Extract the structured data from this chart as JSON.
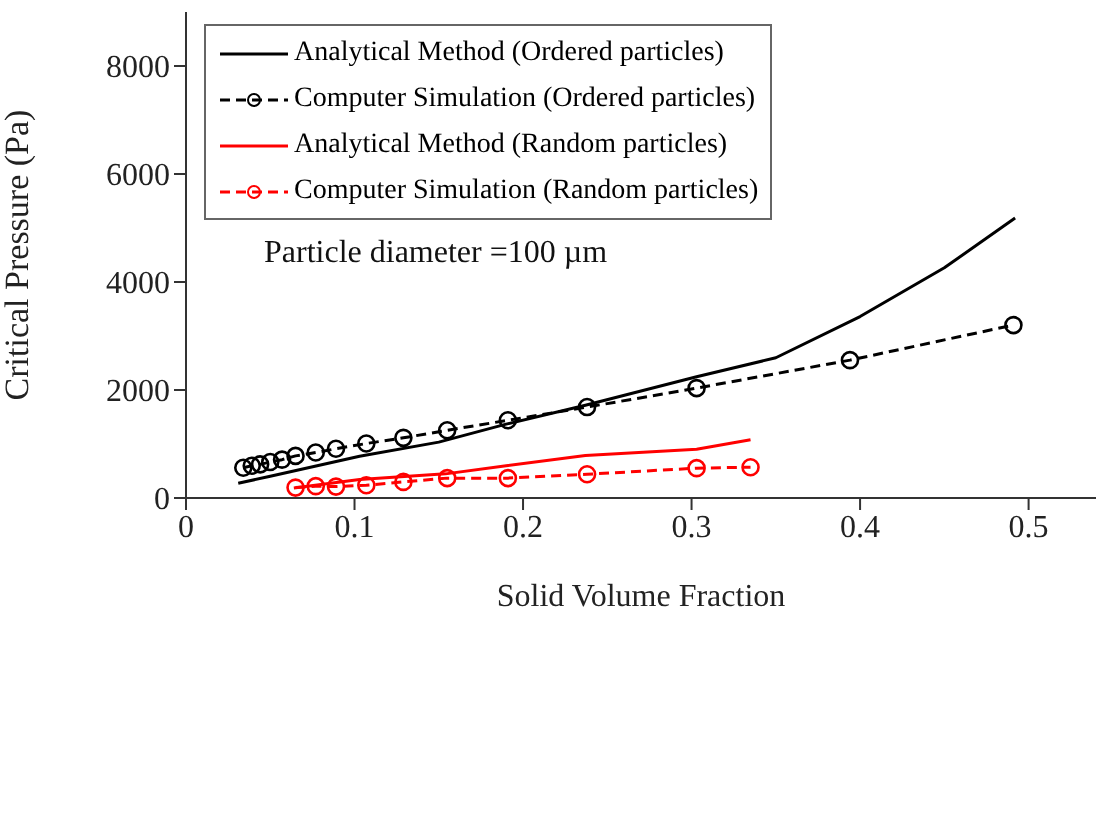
{
  "chart_data": {
    "type": "line",
    "xlabel": "Solid Volume Fraction",
    "ylabel": "Critical Pressure (Pa)",
    "xlim": [
      0,
      0.54
    ],
    "ylim": [
      0,
      9000
    ],
    "xticks": [
      0,
      0.1,
      0.2,
      0.3,
      0.4,
      0.5
    ],
    "yticks": [
      0,
      2000,
      4000,
      6000,
      8000
    ],
    "legend": "top left",
    "annotations": [
      "Particle diameter =100 µm"
    ],
    "series": [
      {
        "name": "Analytical Method (Ordered particles)",
        "color": "#000000",
        "line_style": "solid",
        "marker": "none",
        "x": [
          0.031,
          0.05,
          0.103,
          0.15,
          0.19,
          0.237,
          0.303,
          0.35,
          0.4,
          0.45,
          0.492
        ],
        "values": [
          272,
          403,
          772,
          1035,
          1368,
          1719,
          2246,
          2597,
          3360,
          4263,
          5184
        ]
      },
      {
        "name": "Computer Simulation (Ordered particles)",
        "color": "#000000",
        "line_style": "dashed",
        "marker": "circle",
        "x": [
          0.034,
          0.039,
          0.044,
          0.05,
          0.057,
          0.065,
          0.077,
          0.089,
          0.107,
          0.129,
          0.155,
          0.191,
          0.238,
          0.303,
          0.394,
          0.491
        ],
        "values": [
          560,
          597,
          623,
          667,
          710,
          780,
          842,
          912,
          1009,
          1114,
          1254,
          1439,
          1684,
          2035,
          2553,
          3202
        ]
      },
      {
        "name": "Analytical Method (Random particles)",
        "color": "#ff0000",
        "line_style": "solid",
        "marker": "none",
        "x": [
          0.064,
          0.103,
          0.154,
          0.19,
          0.237,
          0.303,
          0.335
        ],
        "values": [
          184,
          342,
          447,
          596,
          789,
          904,
          1079
        ]
      },
      {
        "name": "Computer Simulation (Random particles)",
        "color": "#ff0000",
        "line_style": "dashed",
        "marker": "circle",
        "x": [
          0.065,
          0.077,
          0.089,
          0.107,
          0.129,
          0.155,
          0.191,
          0.238,
          0.303,
          0.335
        ],
        "values": [
          193,
          219,
          211,
          237,
          298,
          368,
          368,
          439,
          553,
          570
        ]
      }
    ]
  }
}
